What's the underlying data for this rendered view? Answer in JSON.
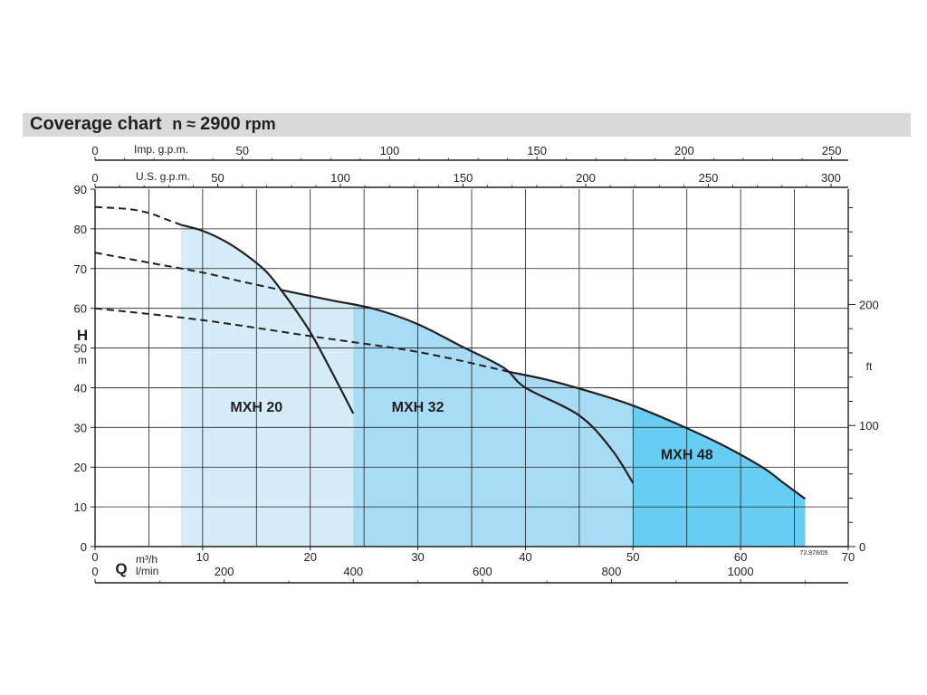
{
  "chart_data": {
    "type": "area",
    "title": "Coverage chart",
    "speed": {
      "prefix": "n ≈",
      "value": "2900",
      "unit": "rpm"
    },
    "x_axes": {
      "imp_gpm": {
        "label": "Imp. g.p.m.",
        "ticks": [
          "0",
          "50",
          "100",
          "150",
          "200",
          "250"
        ],
        "values": [
          0,
          50,
          100,
          150,
          200,
          250
        ],
        "range": [
          0,
          250
        ]
      },
      "us_gpm": {
        "label": "U.S. g.p.m.",
        "ticks": [
          "0",
          "50",
          "100",
          "150",
          "200",
          "250",
          "300"
        ],
        "values": [
          0,
          50,
          100,
          150,
          200,
          250,
          300
        ],
        "range": [
          0,
          300
        ]
      },
      "m3h": {
        "symbol": "Q",
        "label": "m³/h",
        "ticks": [
          "0",
          "10",
          "20",
          "30",
          "40",
          "50",
          "60",
          "70"
        ],
        "values": [
          0,
          10,
          20,
          30,
          40,
          50,
          60,
          70
        ],
        "range": [
          0,
          70
        ]
      },
      "lmin": {
        "label": "l/min",
        "ticks": [
          "0",
          "200",
          "400",
          "600",
          "800",
          "1000"
        ],
        "values": [
          0,
          200,
          400,
          600,
          800,
          1000
        ]
      }
    },
    "y_axes": {
      "left": {
        "label": "H",
        "unit": "m",
        "ticks": [
          "0",
          "10",
          "20",
          "30",
          "40",
          "50",
          "60",
          "70",
          "80",
          "90"
        ],
        "values": [
          0,
          10,
          20,
          30,
          40,
          50,
          60,
          70,
          80,
          90
        ],
        "range": [
          0,
          90
        ]
      },
      "right": {
        "unit": "ft",
        "ticks": [
          "0",
          "100",
          "200"
        ],
        "values": [
          0,
          100,
          200
        ]
      }
    },
    "grid": true,
    "series": [
      {
        "name": "MXH 20",
        "color": "#d6edf9",
        "q_range": [
          8,
          24
        ],
        "dashed": [
          [
            0,
            85.5
          ],
          [
            3,
            85
          ],
          [
            5,
            84
          ],
          [
            6.5,
            82.5
          ],
          [
            8,
            81
          ]
        ],
        "curve": [
          [
            8,
            81
          ],
          [
            10,
            79.5
          ],
          [
            12,
            77
          ],
          [
            14,
            73.5
          ],
          [
            16,
            69
          ],
          [
            18,
            62
          ],
          [
            20,
            54
          ],
          [
            22,
            44
          ],
          [
            24,
            33.5
          ]
        ]
      },
      {
        "name": "MXH 32",
        "color": "#a8dcf5",
        "q_range": [
          24,
          50
        ],
        "dashed": [
          [
            0,
            74
          ],
          [
            5,
            71.5
          ],
          [
            10,
            69
          ],
          [
            14,
            66.5
          ],
          [
            17.5,
            64.5
          ]
        ],
        "curve": [
          [
            17.5,
            64.5
          ],
          [
            22,
            62
          ],
          [
            26,
            59.8
          ],
          [
            30,
            56
          ],
          [
            34,
            50.5
          ],
          [
            38,
            45
          ],
          [
            40,
            40
          ],
          [
            45,
            33
          ],
          [
            48,
            24.5
          ],
          [
            50,
            16
          ]
        ]
      },
      {
        "name": "MXH 48",
        "color": "#68cdf3",
        "q_range": [
          50,
          66
        ],
        "dashed": [
          [
            0,
            60
          ],
          [
            10,
            57
          ],
          [
            20,
            53
          ],
          [
            30,
            49
          ],
          [
            38.5,
            44
          ]
        ],
        "curve": [
          [
            38.5,
            44
          ],
          [
            42,
            42
          ],
          [
            46,
            39
          ],
          [
            50,
            35.5
          ],
          [
            54,
            31
          ],
          [
            58,
            26
          ],
          [
            62,
            20
          ],
          [
            64,
            16
          ],
          [
            66,
            12
          ]
        ]
      }
    ],
    "annotations": {
      "ref_code": "72.978/05"
    }
  }
}
